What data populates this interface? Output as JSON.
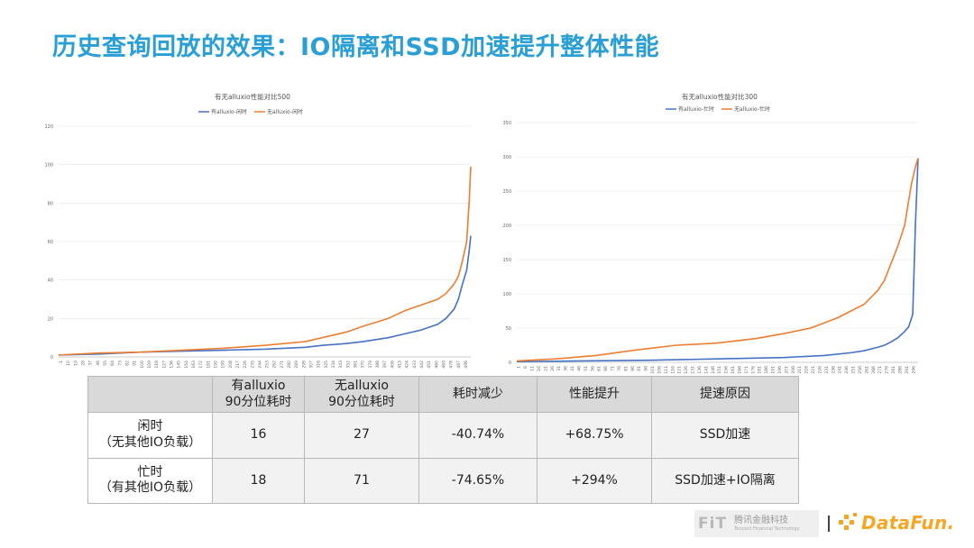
{
  "title": "历史查询回放的效果：IO隔离和SSD加速提升整体性能",
  "colors": {
    "blue": "#4472c4",
    "orange": "#ed7d31",
    "title": "#2a9fd6",
    "datafun": "#f5a623"
  },
  "chart_data": [
    {
      "type": "line",
      "title": "有无alluxio性能对比500",
      "legend_position": "top-center",
      "ylim": [
        0,
        120
      ],
      "yticks": [
        "0",
        "20",
        "40",
        "60",
        "80",
        "100",
        "120"
      ],
      "xticks": [
        "1",
        "10",
        "19",
        "28",
        "37",
        "46",
        "55",
        "64",
        "73",
        "82",
        "91",
        "100",
        "109",
        "118",
        "127",
        "136",
        "145",
        "154",
        "163",
        "172",
        "181",
        "190",
        "199",
        "208",
        "217",
        "226",
        "235",
        "244",
        "253",
        "262",
        "271",
        "280",
        "289",
        "298",
        "307",
        "316",
        "325",
        "334",
        "343",
        "352",
        "361",
        "370",
        "379",
        "388",
        "397",
        "406",
        "415",
        "424",
        "433",
        "442",
        "451",
        "460",
        "469",
        "478",
        "487",
        "496"
      ],
      "x_range": [
        1,
        500
      ],
      "series": [
        {
          "name": "有alluxio-闲时",
          "color": "#4472c4",
          "x": [
            1,
            50,
            100,
            150,
            200,
            250,
            300,
            320,
            350,
            370,
            400,
            420,
            440,
            460,
            470,
            480,
            485,
            490,
            495,
            498,
            500
          ],
          "values": [
            1,
            1.5,
            2.5,
            3,
            3.5,
            4,
            5,
            6,
            7,
            8,
            10,
            12,
            14,
            17,
            20,
            25,
            30,
            38,
            45,
            55,
            63
          ]
        },
        {
          "name": "无alluxio-闲时",
          "color": "#ed7d31",
          "x": [
            1,
            50,
            100,
            150,
            200,
            250,
            300,
            320,
            350,
            370,
            400,
            420,
            440,
            460,
            470,
            480,
            485,
            490,
            495,
            498,
            500
          ],
          "values": [
            1,
            2,
            2.5,
            3.5,
            4.5,
            6,
            8,
            10,
            13,
            16,
            20,
            24,
            27,
            30,
            33,
            38,
            42,
            50,
            60,
            80,
            99
          ]
        }
      ]
    },
    {
      "type": "line",
      "title": "有无alluxio性能对比300",
      "legend_position": "top-center",
      "ylim": [
        0,
        350
      ],
      "yticks": [
        "0",
        "50",
        "100",
        "150",
        "200",
        "250",
        "300",
        "350"
      ],
      "xticks": [
        "1",
        "6",
        "11",
        "16",
        "21",
        "26",
        "31",
        "36",
        "41",
        "46",
        "51",
        "56",
        "61",
        "66",
        "71",
        "76",
        "81",
        "86",
        "91",
        "96",
        "101",
        "106",
        "111",
        "116",
        "121",
        "126",
        "131",
        "136",
        "141",
        "146",
        "151",
        "156",
        "161",
        "166",
        "171",
        "176",
        "181",
        "186",
        "191",
        "196",
        "201",
        "206",
        "211",
        "216",
        "221",
        "226",
        "231",
        "236",
        "241",
        "246",
        "251",
        "256",
        "261",
        "266",
        "271",
        "276",
        "281",
        "286",
        "291",
        "296"
      ],
      "x_range": [
        1,
        300
      ],
      "series": [
        {
          "name": "有alluxio-忙时",
          "color": "#4472c4",
          "x": [
            1,
            50,
            100,
            150,
            200,
            230,
            250,
            260,
            270,
            275,
            280,
            285,
            290,
            293,
            296,
            298,
            300
          ],
          "values": [
            1,
            2,
            3,
            5,
            7,
            10,
            14,
            17,
            22,
            25,
            30,
            36,
            45,
            52,
            70,
            200,
            298
          ]
        },
        {
          "name": "无alluxio-忙时",
          "color": "#ed7d31",
          "x": [
            1,
            30,
            60,
            90,
            120,
            150,
            180,
            200,
            220,
            240,
            250,
            260,
            270,
            275,
            280,
            285,
            290,
            295,
            298,
            300
          ],
          "values": [
            2,
            5,
            10,
            18,
            25,
            28,
            35,
            42,
            50,
            65,
            75,
            85,
            105,
            120,
            145,
            170,
            200,
            260,
            285,
            298
          ]
        }
      ]
    }
  ],
  "table": {
    "headers": [
      "",
      "有alluxio\n90分位耗时",
      "无alluxio\n90分位耗时",
      "耗时减少",
      "性能提升",
      "提速原因"
    ],
    "rows": [
      {
        "label": "闲时\n（无其他IO负载）",
        "cells": [
          "16",
          "27",
          "-40.74%",
          "+68.75%",
          "SSD加速"
        ]
      },
      {
        "label": "忙时\n（有其他IO负载）",
        "cells": [
          "18",
          "71",
          "-74.65%",
          "+294%",
          "SSD加速+IO隔离"
        ]
      }
    ]
  },
  "footer": {
    "fit_mark": "FiT",
    "fit_cn": "腾讯金融科技",
    "fit_en": "Tencent Financial Technology",
    "datafun": "DataFun."
  }
}
